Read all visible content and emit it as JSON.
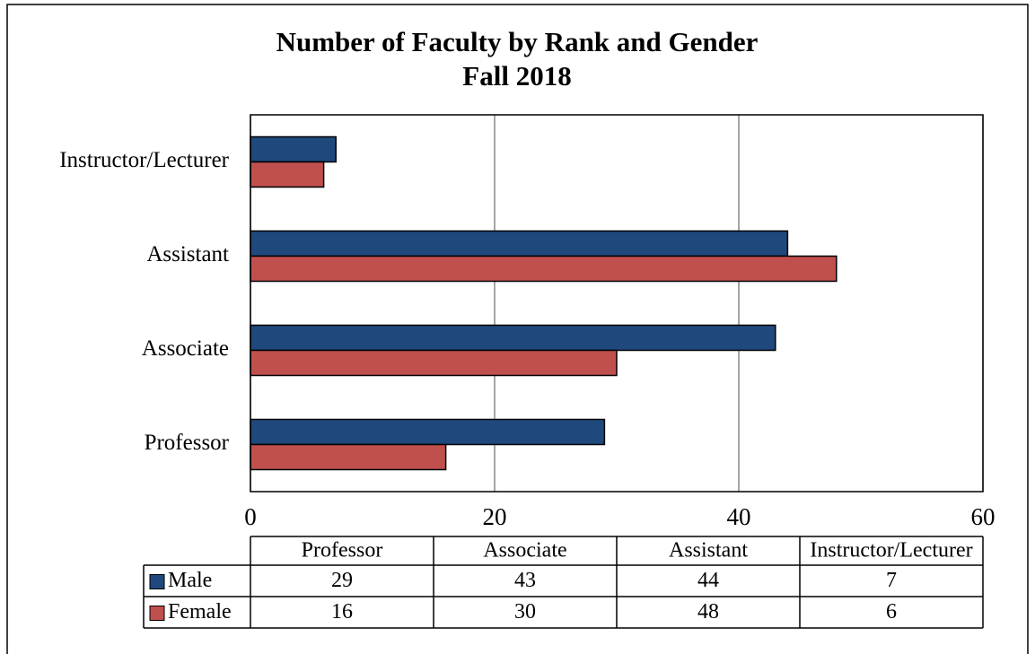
{
  "chart_data": {
    "type": "bar",
    "orientation": "horizontal",
    "title": "Number of Faculty by Rank and Gender",
    "subtitle": "Fall 2018",
    "categories": [
      "Professor",
      "Associate",
      "Assistant",
      "Instructor/Lecturer"
    ],
    "series": [
      {
        "name": "Male",
        "color": "#1f497d",
        "values": [
          29,
          43,
          44,
          7
        ]
      },
      {
        "name": "Female",
        "color": "#c0504d",
        "values": [
          16,
          30,
          48,
          6
        ]
      }
    ],
    "xlim": [
      0,
      60
    ],
    "xticks": [
      0,
      20,
      40,
      60
    ],
    "grid": true,
    "data_table": true
  }
}
